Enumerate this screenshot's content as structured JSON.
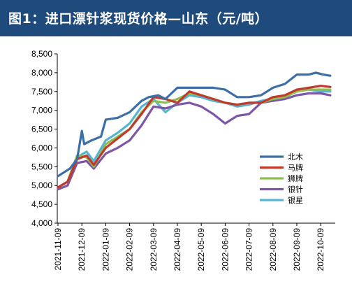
{
  "header": {
    "title": "图1：进口漂针浆现货价格—山东（元/吨）"
  },
  "chart_data": {
    "type": "line",
    "title": "图1：进口漂针浆现货价格—山东（元/吨）",
    "xlabel": "",
    "ylabel": "",
    "ylim": [
      4000,
      8500
    ],
    "yticks": [
      4000,
      4500,
      5000,
      5500,
      6000,
      6500,
      7000,
      7500,
      8000,
      8500
    ],
    "ytick_labels": [
      "4,000",
      "4,500",
      "5,000",
      "5,500",
      "6,000",
      "6,500",
      "7,000",
      "7,500",
      "8,000",
      "8,500"
    ],
    "xtick_labels": [
      "2021-11-09",
      "2021-12-09",
      "2022-01-09",
      "2022-02-09",
      "2022-03-09",
      "2022-04-09",
      "2022-05-09",
      "2022-06-09",
      "2022-07-09",
      "2022-08-09",
      "2022-09-09",
      "2022-10-09"
    ],
    "x_range": [
      0,
      11.9
    ],
    "legend_position": "right",
    "grid": false,
    "series": [
      {
        "name": "北木",
        "color": "#3c6ea8",
        "x": [
          0,
          0.5,
          0.8,
          1.0,
          1.1,
          1.4,
          1.8,
          2.0,
          2.5,
          3.0,
          3.5,
          3.8,
          4.2,
          4.5,
          5.0,
          5.5,
          6.0,
          6.5,
          7.0,
          7.5,
          8.0,
          8.5,
          9.0,
          9.5,
          10.0,
          10.5,
          10.8,
          11.1,
          11.4
        ],
        "y": [
          5250,
          5450,
          5700,
          6450,
          6100,
          6200,
          6300,
          6750,
          6800,
          6950,
          7250,
          7350,
          7400,
          7300,
          7600,
          7600,
          7600,
          7600,
          7550,
          7350,
          7350,
          7400,
          7600,
          7700,
          7950,
          7950,
          8000,
          7950,
          7920
        ]
      },
      {
        "name": "马牌",
        "color": "#c0392b",
        "x": [
          0,
          0.4,
          0.8,
          1.2,
          1.5,
          2.0,
          2.5,
          3.0,
          3.5,
          4.0,
          4.5,
          5.0,
          5.5,
          6.0,
          6.5,
          7.0,
          7.5,
          8.0,
          8.5,
          9.0,
          9.5,
          10.0,
          10.5,
          11.0,
          11.4
        ],
        "y": [
          4950,
          5100,
          5700,
          5800,
          5550,
          6000,
          6250,
          6500,
          6900,
          7350,
          7300,
          7200,
          7500,
          7400,
          7300,
          7200,
          7150,
          7200,
          7200,
          7350,
          7400,
          7550,
          7600,
          7650,
          7620
        ]
      },
      {
        "name": "狮牌",
        "color": "#8cc04e",
        "x": [
          0,
          0.4,
          0.8,
          1.2,
          1.5,
          2.0,
          2.5,
          3.0,
          3.5,
          4.0,
          4.5,
          5.0,
          5.5,
          6.0,
          6.5,
          7.0,
          7.5,
          8.0,
          8.5,
          9.0,
          9.5,
          10.0,
          10.5,
          11.0,
          11.4
        ],
        "y": [
          4950,
          5100,
          5800,
          5750,
          5500,
          6100,
          6300,
          6500,
          6950,
          7250,
          7200,
          7300,
          7450,
          7400,
          7300,
          7200,
          7150,
          7200,
          7200,
          7300,
          7350,
          7500,
          7550,
          7550,
          7550
        ]
      },
      {
        "name": "银针",
        "color": "#7d56a8",
        "x": [
          0,
          0.4,
          0.8,
          1.2,
          1.5,
          2.0,
          2.5,
          3.0,
          3.5,
          4.0,
          4.5,
          5.0,
          5.5,
          6.0,
          6.5,
          7.0,
          7.5,
          8.0,
          8.5,
          9.0,
          9.5,
          10.0,
          10.5,
          11.0,
          11.4
        ],
        "y": [
          4900,
          5000,
          5600,
          5650,
          5450,
          5850,
          6000,
          6200,
          6600,
          7100,
          7050,
          7150,
          7200,
          7100,
          6900,
          6650,
          6850,
          6900,
          7200,
          7250,
          7300,
          7400,
          7450,
          7450,
          7400
        ]
      },
      {
        "name": "银星",
        "color": "#56b4d3",
        "x": [
          0,
          0.4,
          0.8,
          1.2,
          1.5,
          2.0,
          2.5,
          3.0,
          3.5,
          4.0,
          4.5,
          5.0,
          5.5,
          6.0,
          6.5,
          7.0,
          7.5,
          8.0,
          8.5,
          9.0,
          9.5,
          10.0,
          10.5,
          11.0,
          11.4
        ],
        "y": [
          4950,
          5100,
          5750,
          5900,
          5650,
          6200,
          6400,
          6650,
          7100,
          7300,
          6950,
          7200,
          7400,
          7350,
          7250,
          7200,
          7100,
          7150,
          7250,
          7300,
          7350,
          7550,
          7550,
          7500,
          7500
        ]
      }
    ]
  }
}
